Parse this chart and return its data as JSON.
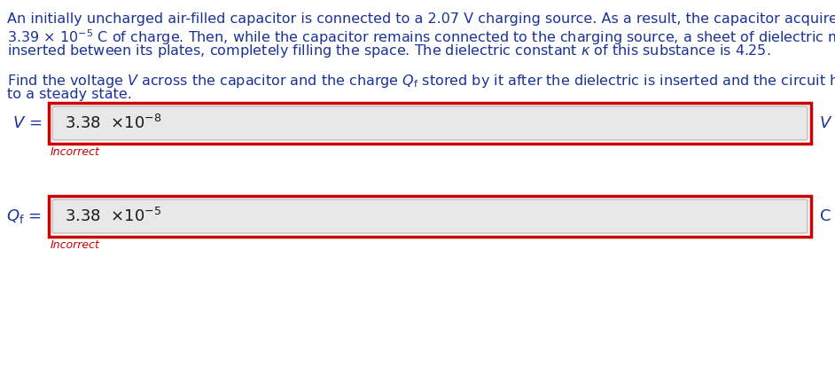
{
  "bg_color": "#ffffff",
  "text_color": "#1a3399",
  "body_lines": [
    "An initially uncharged air-filled capacitor is connected to a 2.07 V charging source. As a result, the capacitor acquires",
    "3.39 × 10⁻⁵ C of charge. Then, while the capacitor remains connected to the charging source, a sheet of dielectric material is",
    "inserted between its plates, completely filling the space. The dielectric constant κ of this substance is 4.25.",
    "",
    "Find the voltage V across the capacitor and the charge Qf stored by it after the dielectric is inserted and the circuit has returned",
    "to a steady state."
  ],
  "box1_value": "3.38  ×10⁻⁸",
  "box1_unit": "V",
  "box1_label": "V =",
  "box1_feedback": "Incorrect",
  "box2_value": "3.38  ×10⁻⁵",
  "box2_unit": "C",
  "box2_label": "Qf =",
  "box2_feedback": "Incorrect",
  "box_border_color": "#cc0000",
  "inner_box_color": "#e8e8e8",
  "inner_box_border_color": "#b0b0b0",
  "incorrect_color": "#cc0000",
  "font_size_body": 11.5,
  "font_size_box_content": 13,
  "font_size_label": 13,
  "font_size_incorrect": 9,
  "fig_width": 9.42,
  "fig_height": 4.32,
  "dpi": 100
}
